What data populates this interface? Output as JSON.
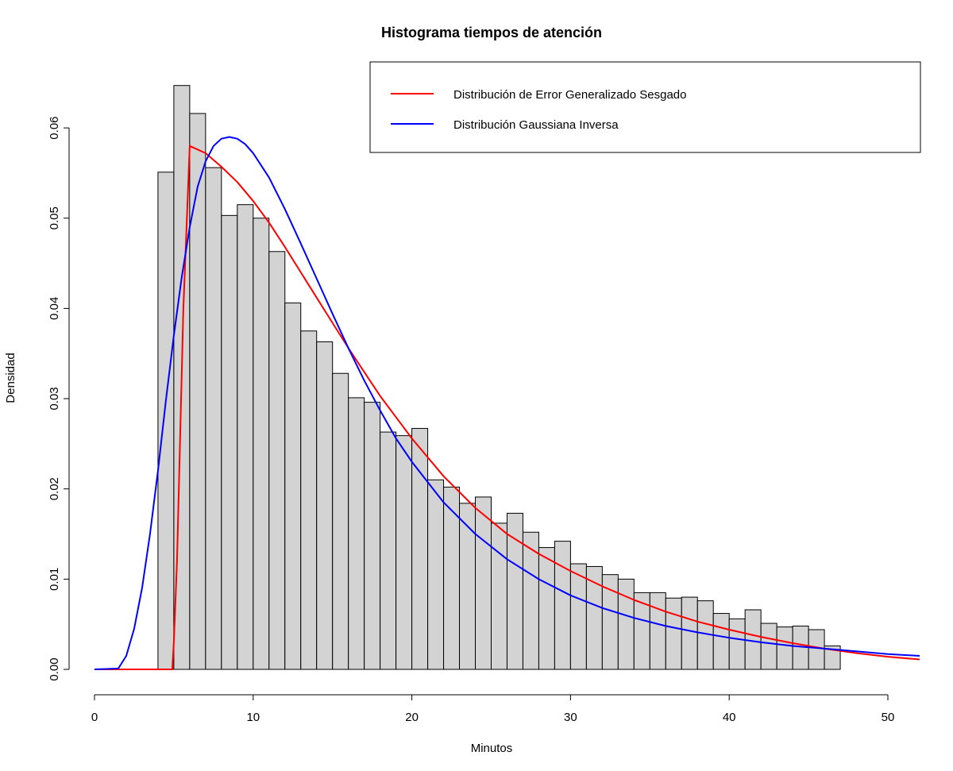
{
  "chart_data": {
    "type": "bar",
    "title": "Histograma tiempos de atención",
    "xlabel": "Minutos",
    "ylabel": "Densidad",
    "xlim": [
      0,
      52
    ],
    "ylim": [
      0,
      0.065
    ],
    "x_ticks": [
      0,
      10,
      20,
      30,
      40,
      50
    ],
    "y_ticks": [
      0.0,
      0.01,
      0.02,
      0.03,
      0.04,
      0.05,
      0.06
    ],
    "y_tick_labels": [
      "0.00",
      "0.01",
      "0.02",
      "0.03",
      "0.04",
      "0.05",
      "0.06"
    ],
    "bin_width": 1,
    "histogram": {
      "bin_starts": [
        4,
        5,
        6,
        7,
        8,
        9,
        10,
        11,
        12,
        13,
        14,
        15,
        16,
        17,
        18,
        19,
        20,
        21,
        22,
        23,
        24,
        25,
        26,
        27,
        28,
        29,
        30,
        31,
        32,
        33,
        34,
        35,
        36,
        37,
        38,
        39,
        40,
        41,
        42,
        43,
        44,
        45,
        46
      ],
      "density": [
        0.0551,
        0.0647,
        0.0616,
        0.0556,
        0.0503,
        0.0515,
        0.05,
        0.0463,
        0.0406,
        0.0375,
        0.0363,
        0.0328,
        0.0301,
        0.0296,
        0.0263,
        0.0259,
        0.0267,
        0.021,
        0.0202,
        0.0184,
        0.0191,
        0.0162,
        0.0173,
        0.0152,
        0.0135,
        0.0142,
        0.0117,
        0.0114,
        0.0105,
        0.01,
        0.0085,
        0.0085,
        0.0079,
        0.008,
        0.0076,
        0.0062,
        0.0056,
        0.0066,
        0.0051,
        0.0047,
        0.0048,
        0.0044,
        0.0026
      ],
      "fill": "#d3d3d3"
    },
    "series": [
      {
        "name": "Distribución de Error Generalizado Sesgado",
        "color": "#ff0000",
        "x": [
          0,
          4.9,
          5.0,
          5.2,
          5.6,
          6.0,
          7,
          8,
          9,
          10,
          11,
          12,
          13,
          14,
          15,
          16,
          18,
          20,
          22,
          24,
          26,
          28,
          30,
          32,
          34,
          36,
          38,
          40,
          42,
          44,
          46,
          48,
          50,
          52
        ],
        "y": [
          0,
          0,
          0.003,
          0.012,
          0.04,
          0.058,
          0.0572,
          0.0557,
          0.054,
          0.0519,
          0.0495,
          0.0468,
          0.044,
          0.0412,
          0.0384,
          0.0356,
          0.0303,
          0.0256,
          0.0214,
          0.0179,
          0.015,
          0.0128,
          0.0109,
          0.0092,
          0.0077,
          0.0064,
          0.0053,
          0.0044,
          0.0036,
          0.0029,
          0.0023,
          0.0018,
          0.0014,
          0.0011
        ]
      },
      {
        "name": "Distribución Gaussiana Inversa",
        "color": "#0000ff",
        "x": [
          0,
          1.5,
          2,
          2.5,
          3,
          3.5,
          4,
          4.5,
          5,
          5.5,
          6,
          6.5,
          7,
          7.5,
          8,
          8.5,
          9,
          9.5,
          10,
          11,
          12,
          13,
          14,
          15,
          16,
          17,
          18,
          19,
          20,
          22,
          24,
          26,
          28,
          30,
          32,
          34,
          36,
          38,
          40,
          42,
          44,
          46,
          48,
          50,
          52
        ],
        "y": [
          0,
          0.0001,
          0.0015,
          0.0045,
          0.009,
          0.015,
          0.022,
          0.0298,
          0.037,
          0.0435,
          0.049,
          0.0535,
          0.0563,
          0.058,
          0.0588,
          0.059,
          0.0588,
          0.0582,
          0.0572,
          0.0545,
          0.051,
          0.0472,
          0.0433,
          0.0394,
          0.0356,
          0.032,
          0.0287,
          0.0256,
          0.023,
          0.0185,
          0.015,
          0.0122,
          0.01,
          0.0082,
          0.0068,
          0.0057,
          0.0048,
          0.0041,
          0.0035,
          0.003,
          0.0026,
          0.0023,
          0.002,
          0.0017,
          0.0015
        ]
      }
    ],
    "legend_placement": "top-right",
    "grid": false
  }
}
